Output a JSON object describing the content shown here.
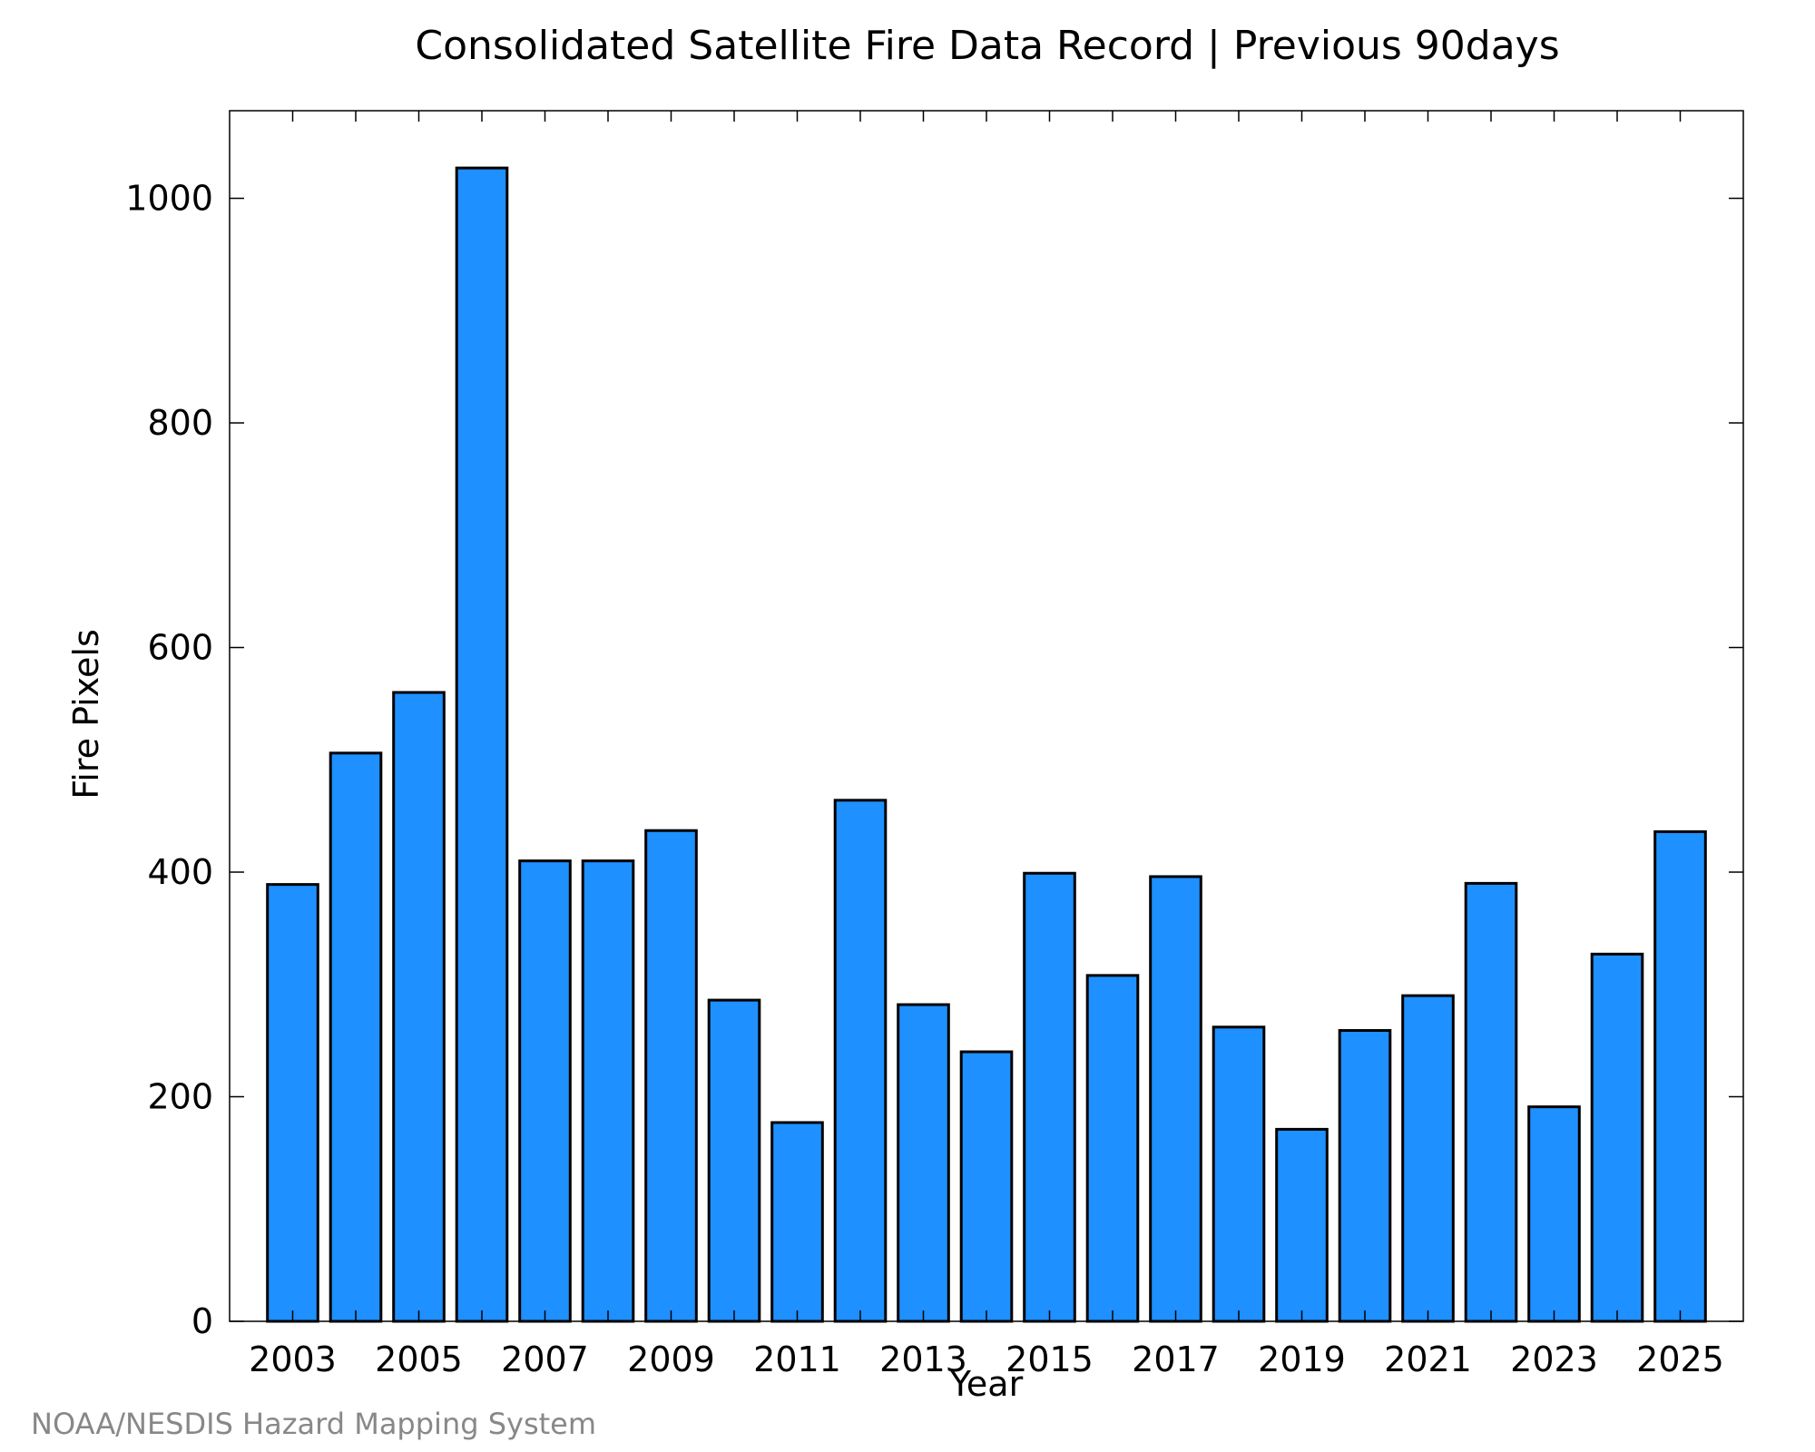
{
  "chart_data": {
    "type": "bar",
    "title": "Consolidated Satellite Fire Data Record | Previous 90days",
    "xlabel": "Year",
    "ylabel": "Fire Pixels",
    "x": [
      2003,
      2004,
      2005,
      2006,
      2007,
      2008,
      2009,
      2010,
      2011,
      2012,
      2013,
      2014,
      2015,
      2016,
      2017,
      2018,
      2019,
      2020,
      2021,
      2022,
      2023,
      2024,
      2025
    ],
    "values": [
      389,
      506,
      560,
      1027,
      410,
      410,
      437,
      286,
      177,
      464,
      282,
      240,
      399,
      308,
      396,
      262,
      171,
      259,
      290,
      390,
      191,
      327,
      436
    ],
    "x_tick_labels": [
      "2003",
      "2005",
      "2007",
      "2009",
      "2011",
      "2013",
      "2015",
      "2017",
      "2019",
      "2021",
      "2023",
      "2025"
    ],
    "y_ticks": [
      0,
      200,
      400,
      600,
      800,
      1000
    ],
    "y_tick_labels": [
      "0",
      "200",
      "400",
      "600",
      "800",
      "1000"
    ],
    "ylim": [
      0,
      1078
    ],
    "xlim": [
      2002.0,
      2026.0
    ],
    "bar_color": "#1e90ff",
    "bar_edge_color": "#000000",
    "grid": false,
    "legend": "none"
  },
  "footer": {
    "credit": "NOAA/NESDIS Hazard Mapping System"
  }
}
